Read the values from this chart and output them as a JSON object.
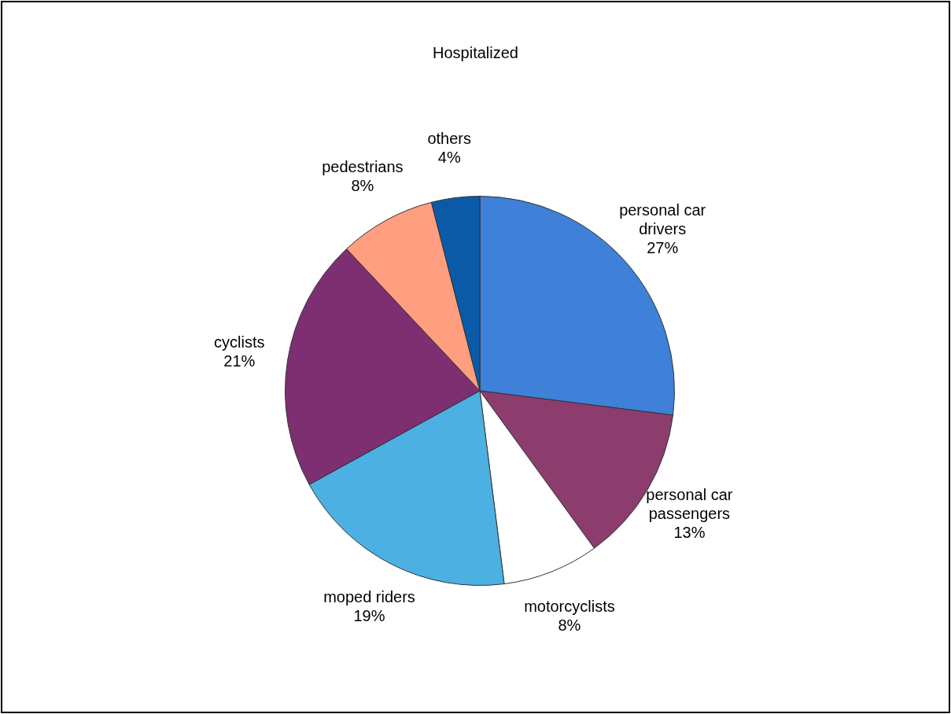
{
  "chart_data": {
    "type": "pie",
    "title": "Hospitalized",
    "categories": [
      "personal car drivers",
      "personal car passengers",
      "motorcyclists",
      "moped riders",
      "cyclists",
      "pedestrians",
      "others"
    ],
    "values": [
      27,
      13,
      8,
      19,
      21,
      8,
      4
    ],
    "colors": [
      "#3f80d8",
      "#8c3d6e",
      "#ffffff",
      "#4db0e2",
      "#7d2f72",
      "#ff9f80",
      "#0b5aa8"
    ],
    "value_labels": [
      "27%",
      "13%",
      "8%",
      "19%",
      "21%",
      "8%",
      "4%"
    ],
    "legend": false
  }
}
